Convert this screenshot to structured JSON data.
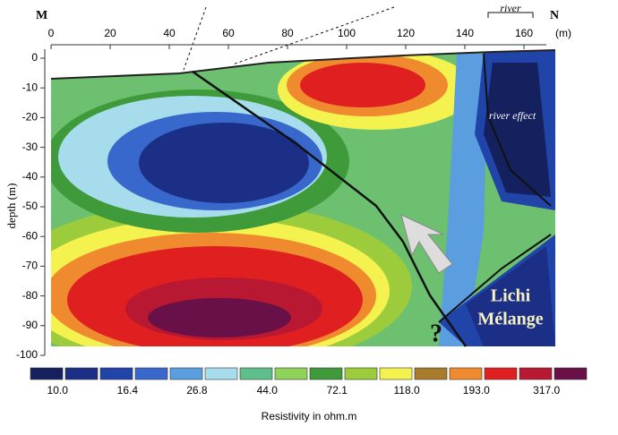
{
  "chart_data": {
    "type": "heatmap",
    "left_label": "M",
    "right_label": "N",
    "x_unit": "(m)",
    "ylabel": "depth (m)",
    "xlim": [
      0,
      170
    ],
    "xticks": [
      0,
      20,
      40,
      60,
      80,
      100,
      120,
      140,
      160
    ],
    "ylim": [
      -100,
      0
    ],
    "yticks": [
      0,
      -10,
      -20,
      -30,
      -40,
      -50,
      -60,
      -70,
      -80,
      -90,
      -100
    ],
    "annotations": [
      "river",
      "river effect",
      "Lichi",
      "Mélange",
      "?"
    ],
    "colorbar": {
      "colors": [
        "#15205e",
        "#1b2f86",
        "#2044a8",
        "#3868cc",
        "#5a9ee0",
        "#a6dcec",
        "#5fbf8c",
        "#8fd25a",
        "#3f9a3a",
        "#9ccc3c",
        "#f4f24e",
        "#a87c2c",
        "#f08a2e",
        "#e02020",
        "#b81832",
        "#6a1048"
      ],
      "labels": [
        {
          "value": 10,
          "label": "10.0"
        },
        {
          "value": 16.4,
          "label": "16.4"
        },
        {
          "value": 26.8,
          "label": "26.8"
        },
        {
          "value": 44,
          "label": "44.0"
        },
        {
          "value": 72.1,
          "label": "72.1"
        },
        {
          "value": 118,
          "label": "118.0"
        },
        {
          "value": 193,
          "label": "193.0"
        },
        {
          "value": 317,
          "label": "317.0"
        }
      ],
      "title": "Resistivity in ohm.m"
    }
  }
}
